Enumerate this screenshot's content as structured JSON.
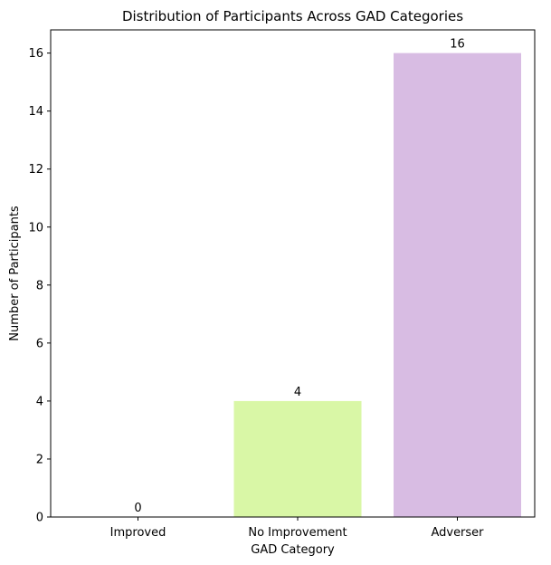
{
  "chart_data": {
    "type": "bar",
    "title": "Distribution of Participants Across GAD Categories",
    "xlabel": "GAD Category",
    "ylabel": "Number of Participants",
    "categories": [
      "Improved",
      "No Improvement",
      "Adverser"
    ],
    "values": [
      0,
      4,
      16
    ],
    "data_labels": [
      "0",
      "4",
      "16"
    ],
    "colors": [
      "#c9d9f2",
      "#d9f7a6",
      "#d8bce3"
    ],
    "ylim": [
      0,
      16.8
    ],
    "yticks": [
      0,
      2,
      4,
      6,
      8,
      10,
      12,
      14,
      16
    ],
    "grid": false,
    "legend": "none"
  }
}
